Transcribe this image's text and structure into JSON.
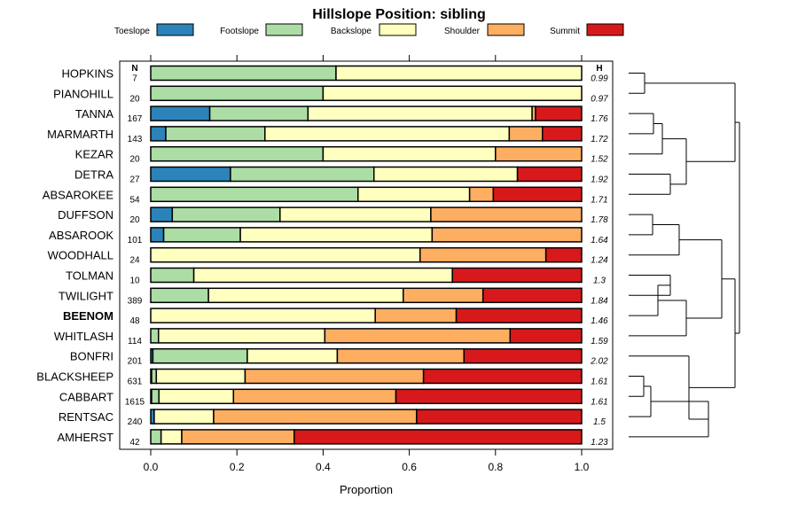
{
  "chart_data": {
    "type": "bar",
    "orientation": "horizontal",
    "stacked": true,
    "title": "Hillslope Position: sibling",
    "xlabel": "Proportion",
    "ylabel": "",
    "xlim": [
      0,
      1
    ],
    "xticks": [
      "0.0",
      "0.2",
      "0.4",
      "0.6",
      "0.8",
      "1.0"
    ],
    "n_header": "N",
    "h_header": "H",
    "highlight": "BEENOM",
    "series": [
      {
        "name": "Toeslope",
        "color": "#2b83ba"
      },
      {
        "name": "Footslope",
        "color": "#abdda4"
      },
      {
        "name": "Backslope",
        "color": "#ffffbf"
      },
      {
        "name": "Shoulder",
        "color": "#fdae61"
      },
      {
        "name": "Summit",
        "color": "#d7191c"
      }
    ],
    "rows": [
      {
        "label": "HOPKINS",
        "n": "7",
        "h": "0.99",
        "values": [
          0,
          0.43,
          0.57,
          0,
          0
        ]
      },
      {
        "label": "PIANOHILL",
        "n": "20",
        "h": "0.97",
        "values": [
          0,
          0.4,
          0.6,
          0,
          0
        ]
      },
      {
        "label": "TANNA",
        "n": "167",
        "h": "1.76",
        "values": [
          0.137,
          0.228,
          0.52,
          0.008,
          0.107
        ]
      },
      {
        "label": "MARMARTH",
        "n": "143",
        "h": "1.72",
        "values": [
          0.035,
          0.23,
          0.567,
          0.077,
          0.091
        ]
      },
      {
        "label": "KEZAR",
        "n": "20",
        "h": "1.52",
        "values": [
          0,
          0.4,
          0.4,
          0.2,
          0
        ]
      },
      {
        "label": "DETRA",
        "n": "27",
        "h": "1.92",
        "values": [
          0.185,
          0.333,
          0.333,
          0,
          0.149
        ]
      },
      {
        "label": "ABSAROKEE",
        "n": "54",
        "h": "1.71",
        "values": [
          0,
          0.481,
          0.259,
          0.055,
          0.205
        ]
      },
      {
        "label": "DUFFSON",
        "n": "20",
        "h": "1.78",
        "values": [
          0.05,
          0.25,
          0.35,
          0.35,
          0
        ]
      },
      {
        "label": "ABSAROOK",
        "n": "101",
        "h": "1.64",
        "values": [
          0.03,
          0.178,
          0.445,
          0.347,
          0
        ]
      },
      {
        "label": "WOODHALL",
        "n": "24",
        "h": "1.24",
        "values": [
          0,
          0,
          0.625,
          0.292,
          0.083
        ]
      },
      {
        "label": "TOLMAN",
        "n": "10",
        "h": "1.3",
        "values": [
          0,
          0.1,
          0.6,
          0,
          0.3
        ]
      },
      {
        "label": "TWILIGHT",
        "n": "389",
        "h": "1.84",
        "values": [
          0,
          0.134,
          0.452,
          0.185,
          0.229
        ]
      },
      {
        "label": "BEENOM",
        "n": "48",
        "h": "1.46",
        "values": [
          0,
          0,
          0.521,
          0.188,
          0.291
        ]
      },
      {
        "label": "WHITLASH",
        "n": "114",
        "h": "1.59",
        "values": [
          0,
          0.018,
          0.386,
          0.43,
          0.166
        ]
      },
      {
        "label": "BONFRI",
        "n": "201",
        "h": "2.02",
        "values": [
          0.005,
          0.219,
          0.209,
          0.294,
          0.273
        ]
      },
      {
        "label": "BLACKSHEEP",
        "n": "631",
        "h": "1.61",
        "values": [
          0.002,
          0.011,
          0.206,
          0.414,
          0.367
        ]
      },
      {
        "label": "CABBART",
        "n": "1615",
        "h": "1.61",
        "values": [
          0.002,
          0.017,
          0.173,
          0.377,
          0.431
        ]
      },
      {
        "label": "RENTSAC",
        "n": "240",
        "h": "1.5",
        "values": [
          0.008,
          0,
          0.138,
          0.471,
          0.383
        ]
      },
      {
        "label": "AMHERST",
        "n": "42",
        "h": "1.23",
        "values": [
          0,
          0.024,
          0.048,
          0.261,
          0.667
        ]
      }
    ]
  }
}
